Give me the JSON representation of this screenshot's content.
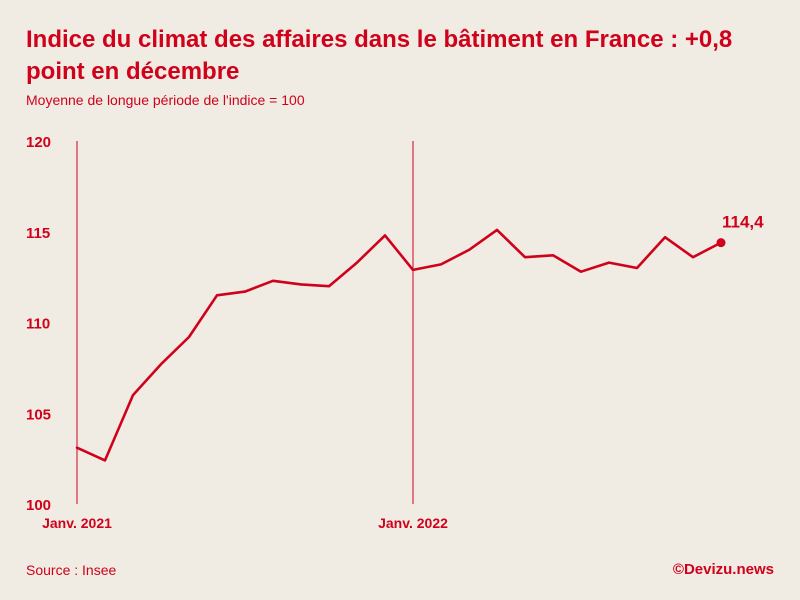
{
  "header": {
    "title": "Indice du climat des affaires dans le bâtiment en France : +0,8 point en décembre",
    "subtitle": "Moyenne de longue période de l'indice = 100"
  },
  "footer": {
    "source": "Source : Insee",
    "credit": "©Devizu.news"
  },
  "colors": {
    "accent": "#d0021b",
    "background": "#f0ebe3"
  },
  "chart_data": {
    "type": "line",
    "title": "Indice du climat des affaires dans le bâtiment en France : +0,8 point en décembre",
    "subtitle": "Moyenne de longue période de l'indice = 100",
    "x": [
      "2021-01",
      "2021-02",
      "2021-03",
      "2021-04",
      "2021-05",
      "2021-06",
      "2021-07",
      "2021-08",
      "2021-09",
      "2021-10",
      "2021-11",
      "2021-12",
      "2022-01",
      "2022-02",
      "2022-03",
      "2022-04",
      "2022-05",
      "2022-06",
      "2022-07",
      "2022-08",
      "2022-09",
      "2022-10",
      "2022-11",
      "2022-12"
    ],
    "series": [
      {
        "name": "",
        "values": [
          103.1,
          102.4,
          106.0,
          107.7,
          109.2,
          111.5,
          111.7,
          112.3,
          112.1,
          112.0,
          113.3,
          114.8,
          112.9,
          113.2,
          114.0,
          115.1,
          113.6,
          113.7,
          112.8,
          113.3,
          113.0,
          114.7,
          113.6,
          114.4
        ]
      }
    ],
    "ylim": [
      100,
      120
    ],
    "yticks": [
      "100",
      "105",
      "110",
      "115",
      "120"
    ],
    "xtick_labels": [
      {
        "x": "2021-01",
        "label": "Janv. 2021"
      },
      {
        "x": "2022-01",
        "label": "Janv. 2022"
      }
    ],
    "reference_lines_x": [
      "2021-01",
      "2022-01"
    ],
    "last_value_label": "114,4",
    "grid": false,
    "legend": "none"
  }
}
